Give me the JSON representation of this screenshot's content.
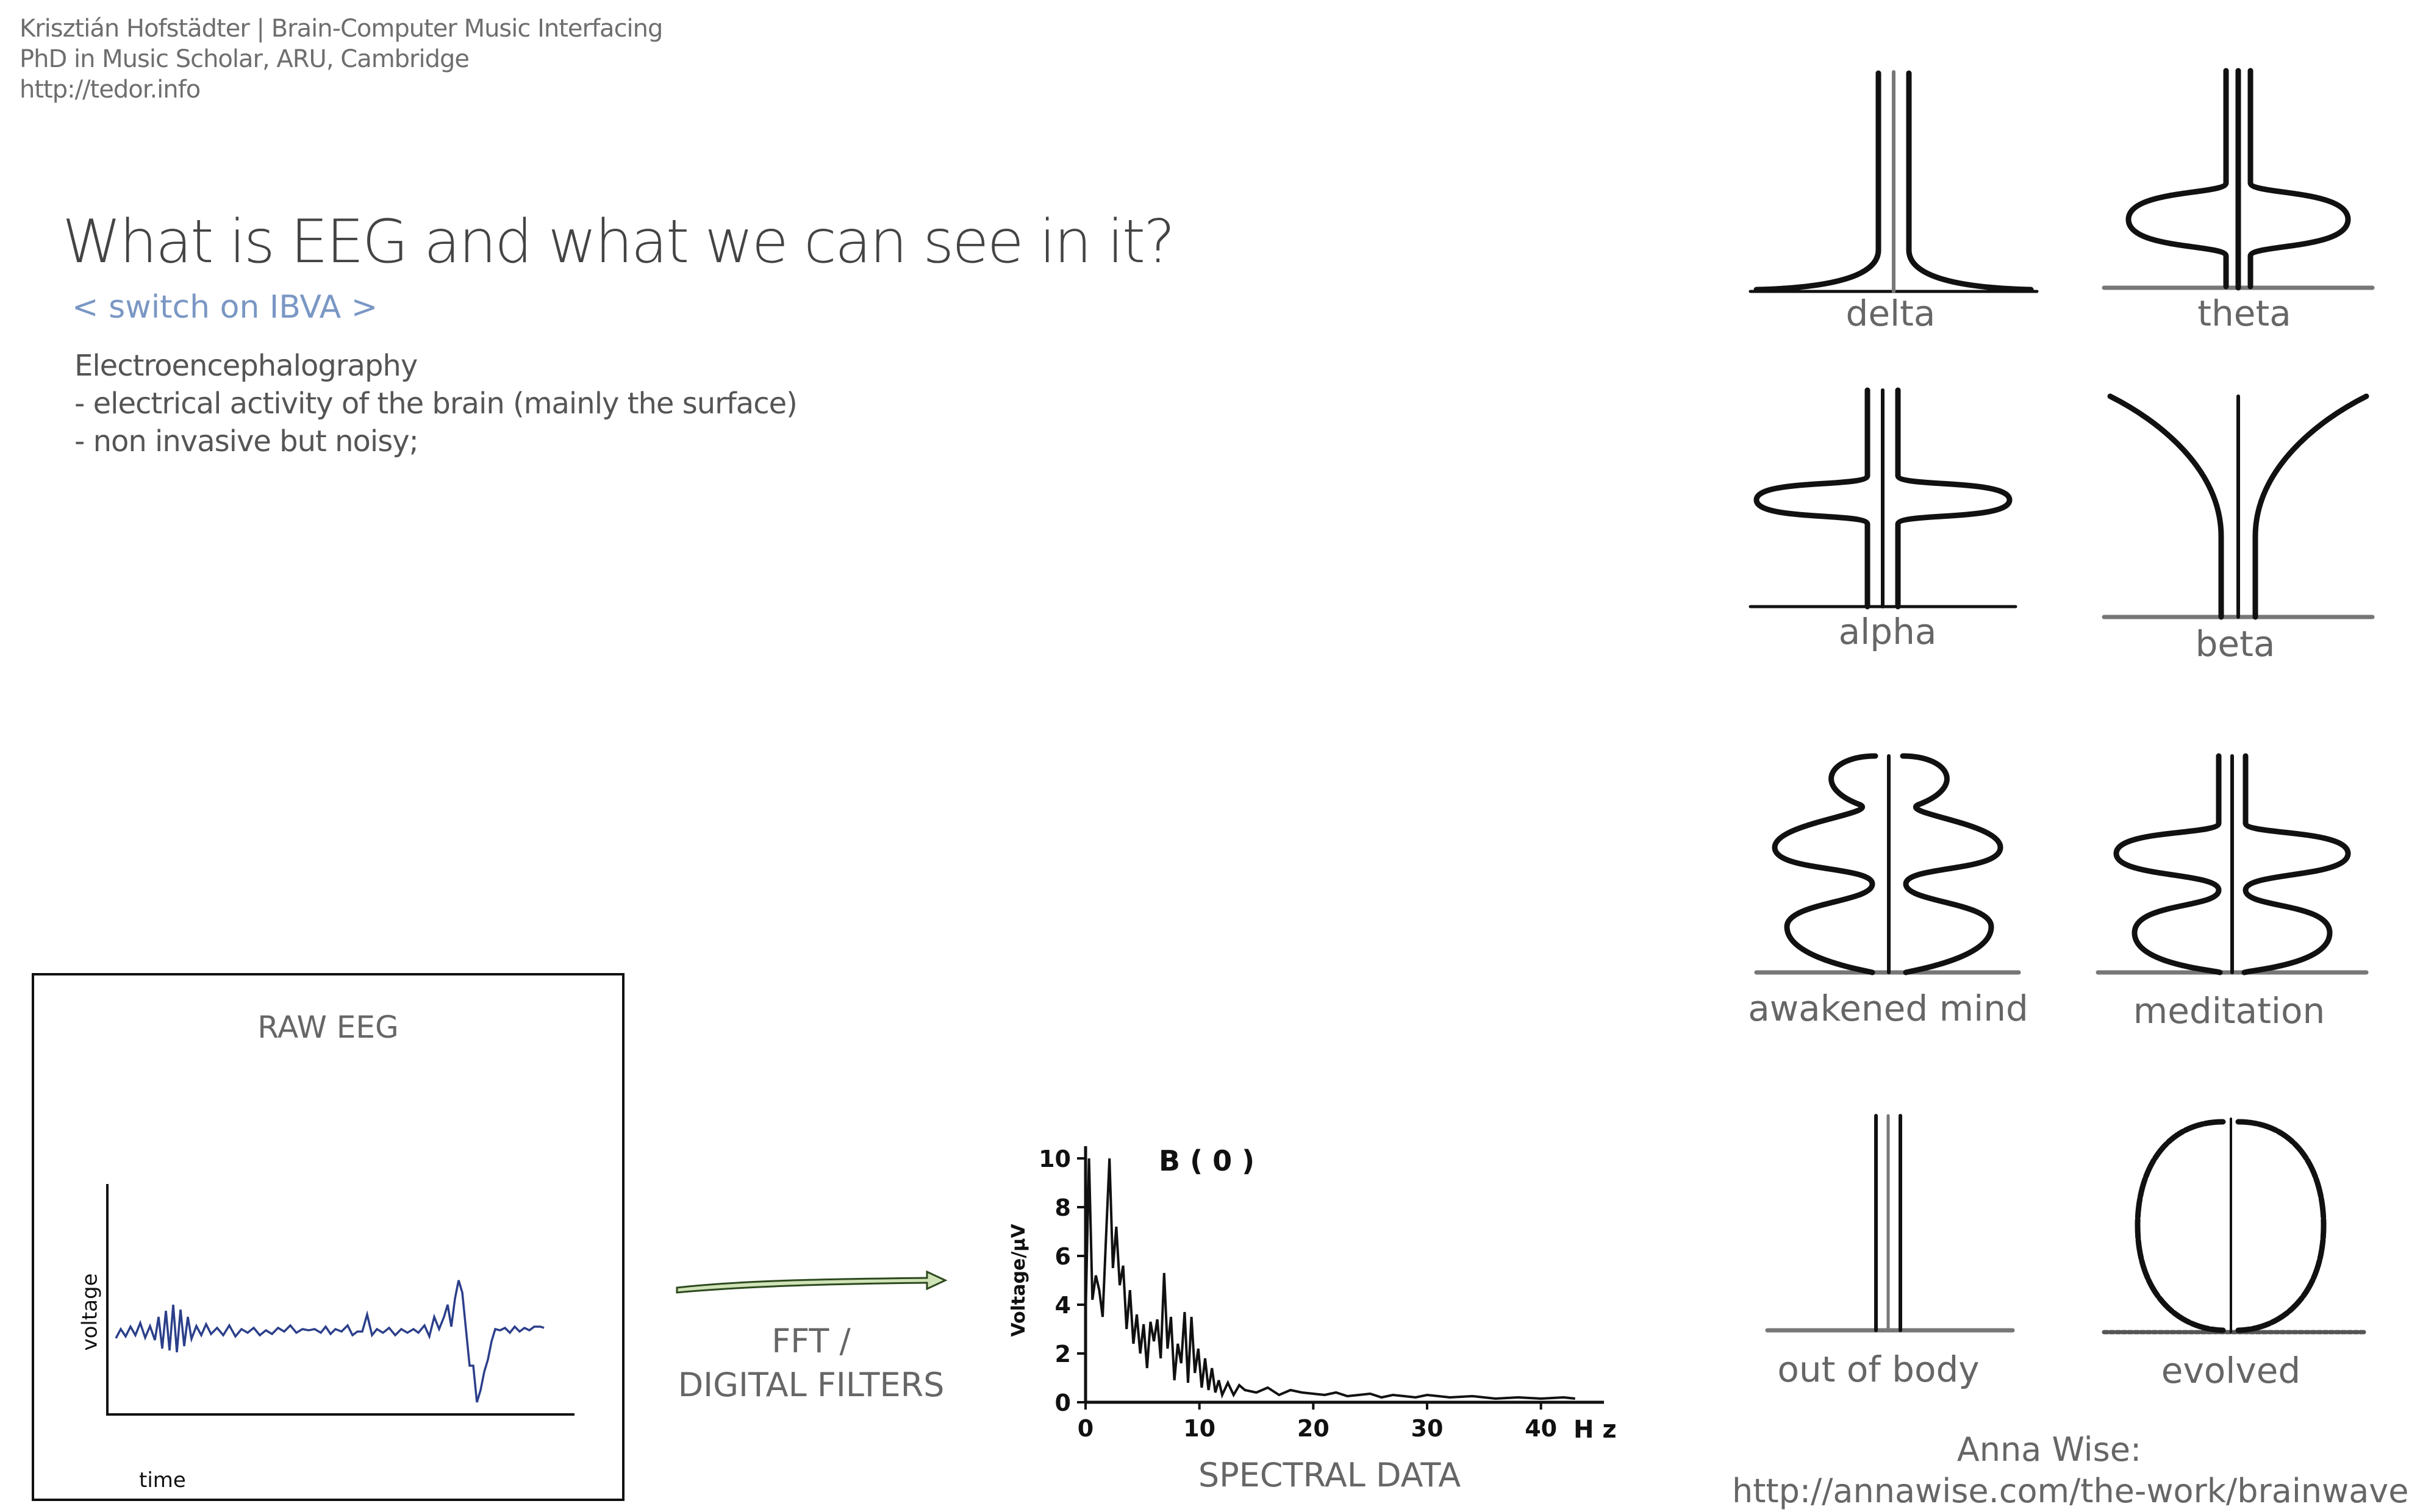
{
  "header": {
    "line1": "Krisztián Hofstädter | Brain-Computer Music Interfacing",
    "line2": "PhD in Music Scholar, ARU, Cambridge",
    "line3": "http://tedor.info"
  },
  "slide": {
    "title": "What is EEG and what we can see in it?",
    "subtitle": "< switch on IBVA >",
    "body": [
      "Electroencephalography",
      "- electrical activity of the brain (mainly the surface)",
      "- non invasive but noisy;"
    ]
  },
  "raw_eeg": {
    "title": "RAW EEG",
    "xlabel": "time",
    "ylabel": "voltage"
  },
  "arrow_caption": {
    "line1": "FFT /",
    "line2": "DIGITAL FILTERS"
  },
  "spectral": {
    "caption": "SPECTRAL DATA"
  },
  "chart_data": {
    "type": "line",
    "title": "B ( 0 )",
    "xlabel": "H z",
    "ylabel": "Voltage/μV",
    "xlim": [
      0,
      45
    ],
    "ylim": [
      0,
      10
    ],
    "xticks": [
      0,
      10,
      20,
      30,
      40
    ],
    "yticks": [
      0,
      2,
      4,
      6,
      8,
      10
    ],
    "x": [
      0,
      0.3,
      0.6,
      0.9,
      1.2,
      1.5,
      1.8,
      2.1,
      2.4,
      2.7,
      3,
      3.3,
      3.6,
      3.9,
      4.2,
      4.5,
      4.8,
      5.1,
      5.4,
      5.7,
      6,
      6.3,
      6.6,
      6.9,
      7.2,
      7.5,
      7.8,
      8.1,
      8.4,
      8.7,
      9,
      9.3,
      9.6,
      9.9,
      10.2,
      10.5,
      10.8,
      11.1,
      11.4,
      11.7,
      12,
      12.5,
      13,
      13.5,
      14,
      15,
      16,
      17,
      18,
      19,
      20,
      21,
      22,
      23,
      24,
      25,
      26,
      27,
      28,
      29,
      30,
      32,
      34,
      36,
      38,
      40,
      42,
      43
    ],
    "y": [
      3.5,
      10,
      4.2,
      5.2,
      4.6,
      3.5,
      6.8,
      10,
      5.5,
      7.2,
      4.8,
      5.6,
      3,
      4.6,
      2.4,
      3.6,
      2,
      3.2,
      1.4,
      3.3,
      2.5,
      3.4,
      1.8,
      5.3,
      2.2,
      3.5,
      0.9,
      2.4,
      1.6,
      3.7,
      0.8,
      3.5,
      1.2,
      2.2,
      0.6,
      1.8,
      0.5,
      1.4,
      0.4,
      0.9,
      0.3,
      0.8,
      0.3,
      0.7,
      0.5,
      0.4,
      0.6,
      0.3,
      0.5,
      0.4,
      0.35,
      0.3,
      0.4,
      0.25,
      0.3,
      0.35,
      0.2,
      0.3,
      0.25,
      0.2,
      0.3,
      0.2,
      0.25,
      0.15,
      0.2,
      0.15,
      0.2,
      0.15
    ]
  },
  "waves": [
    {
      "label": "delta"
    },
    {
      "label": "theta"
    },
    {
      "label": "alpha"
    },
    {
      "label": "beta"
    },
    {
      "label": "awakened mind"
    },
    {
      "label": "meditation"
    },
    {
      "label": "out of body"
    },
    {
      "label": "evolved"
    }
  ],
  "credit": {
    "line1": "Anna Wise:",
    "line2": "http://annawise.com/the-work/brainwaves/"
  }
}
